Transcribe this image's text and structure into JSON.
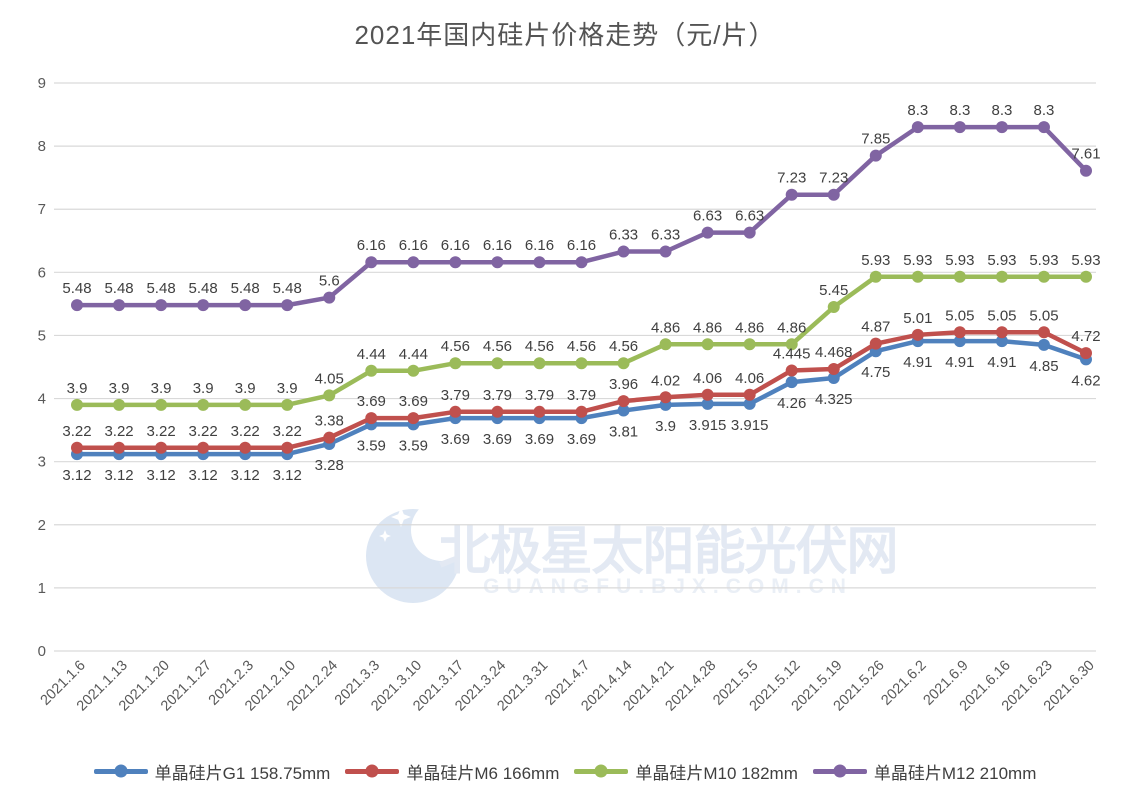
{
  "chart_data": {
    "type": "line",
    "title": "2021年国内硅片价格走势（元/片）",
    "categories": [
      "2021.1.6",
      "2021.1.13",
      "2021.1.20",
      "2021.1.27",
      "2021.2.3",
      "2021.2.10",
      "2021.2.24",
      "2021.3.3",
      "2021.3.10",
      "2021.3.17",
      "2021.3.24",
      "2021.3.31",
      "2021.4.7",
      "2021.4.14",
      "2021.4.21",
      "2021.4.28",
      "2021.5.5",
      "2021.5.12",
      "2021.5.19",
      "2021.5.26",
      "2021.6.2",
      "2021.6.9",
      "2021.6.16",
      "2021.6.23",
      "2021.6.30"
    ],
    "series": [
      {
        "id": "g1",
        "name": "单晶硅片G1 158.75mm",
        "color": "#4F81BD",
        "label_position": "below",
        "values": [
          3.12,
          3.12,
          3.12,
          3.12,
          3.12,
          3.12,
          3.28,
          3.59,
          3.59,
          3.69,
          3.69,
          3.69,
          3.69,
          3.81,
          3.9,
          3.915,
          3.915,
          4.26,
          4.325,
          4.75,
          4.91,
          4.91,
          4.91,
          4.85,
          4.62
        ]
      },
      {
        "id": "m6",
        "name": "单晶硅片M6 166mm",
        "color": "#C0504D",
        "label_position": "above",
        "values": [
          3.22,
          3.22,
          3.22,
          3.22,
          3.22,
          3.22,
          3.38,
          3.69,
          3.69,
          3.79,
          3.79,
          3.79,
          3.79,
          3.96,
          4.02,
          4.06,
          4.06,
          4.445,
          4.468,
          4.87,
          5.01,
          5.05,
          5.05,
          5.05,
          4.72
        ]
      },
      {
        "id": "m10",
        "name": "单晶硅片M10 182mm",
        "color": "#9BBB59",
        "label_position": "above",
        "values": [
          3.9,
          3.9,
          3.9,
          3.9,
          3.9,
          3.9,
          4.05,
          4.44,
          4.44,
          4.56,
          4.56,
          4.56,
          4.56,
          4.56,
          4.86,
          4.86,
          4.86,
          4.86,
          5.45,
          5.93,
          5.93,
          5.93,
          5.93,
          5.93,
          5.93
        ]
      },
      {
        "id": "m12",
        "name": "单晶硅片M12 210mm",
        "color": "#8064A2",
        "label_position": "above",
        "values": [
          5.48,
          5.48,
          5.48,
          5.48,
          5.48,
          5.48,
          5.6,
          6.16,
          6.16,
          6.16,
          6.16,
          6.16,
          6.16,
          6.33,
          6.33,
          6.63,
          6.63,
          7.23,
          7.23,
          7.85,
          8.3,
          8.3,
          8.3,
          8.3,
          7.61
        ]
      }
    ],
    "ylim": [
      0,
      9
    ],
    "ytick_step": 1,
    "grid": true,
    "legend_position": "bottom",
    "gridline_color": "#D9D9D9",
    "tick_label_color": "#595959",
    "data_label_color": "#404040",
    "title_color": "#545454",
    "watermark": {
      "line1": "北极星太阳能光伏网",
      "line2": "GUANGFU.BJX.COM.CN",
      "text_color": "#E3E9F3",
      "url_color": "#EAEFF6",
      "logo_color": "#DCE6F3"
    }
  }
}
